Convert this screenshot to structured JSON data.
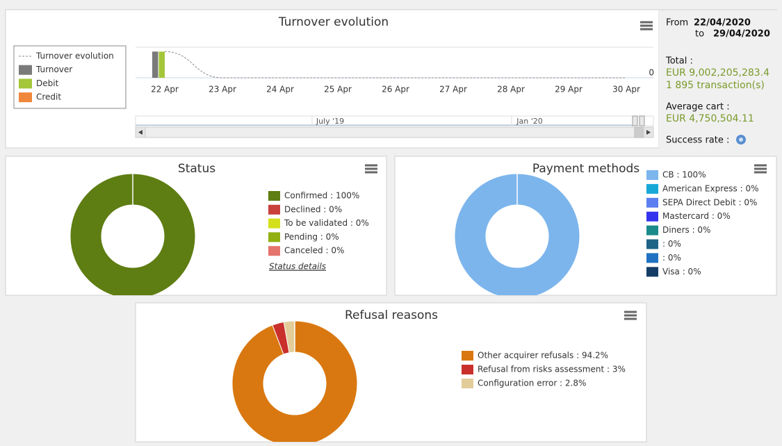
{
  "sidebar": {
    "from_label": "From",
    "from": "22/04/2020",
    "to_label": "to",
    "to": "29/04/2020",
    "total_label": "Total :",
    "total": "EUR 9,002,205,283.4",
    "transactions": "1 895 transaction(s)",
    "average_label": "Average cart :",
    "average": "EUR 4,750,504.11",
    "success_label": "Success rate :"
  },
  "chart_data": [
    {
      "type": "bar",
      "title": "Turnover evolution",
      "categories": [
        "22 Apr",
        "23 Apr",
        "24 Apr",
        "25 Apr",
        "26 Apr",
        "27 Apr",
        "28 Apr",
        "29 Apr",
        "30 Apr"
      ],
      "series": [
        {
          "name": "Turnover evolution",
          "kind": "line",
          "color": "#888888",
          "values": [
            9002205283.4,
            0,
            0,
            0,
            0,
            0,
            0,
            0,
            0
          ]
        },
        {
          "name": "Turnover",
          "kind": "bar",
          "color": "#7a7a7a",
          "values": [
            9002205283.4,
            0,
            0,
            0,
            0,
            0,
            0,
            0,
            0
          ]
        },
        {
          "name": "Debit",
          "kind": "bar",
          "color": "#a4c639",
          "values": [
            9002205283.4,
            0,
            0,
            0,
            0,
            0,
            0,
            0,
            0
          ]
        },
        {
          "name": "Credit",
          "kind": "bar",
          "color": "#f0873a",
          "values": [
            0,
            0,
            0,
            0,
            0,
            0,
            0,
            0,
            0
          ]
        }
      ],
      "ylim": [
        0,
        10500000000
      ],
      "yticks": [
        0
      ],
      "grid": true,
      "navigator_labels": [
        "July '19",
        "Jan '20"
      ]
    },
    {
      "type": "pie",
      "title": "Status",
      "categories": [
        "Confirmed : 100%",
        "Declined : 0%",
        "To be validated : 0%",
        "Pending : 0%",
        "Canceled : 0%"
      ],
      "values": [
        100,
        0,
        0,
        0,
        0
      ],
      "colors": [
        "#5e7d12",
        "#c8413b",
        "#d4e01c",
        "#92b012",
        "#e5746d"
      ],
      "link": "Status details"
    },
    {
      "type": "pie",
      "title": "Payment methods",
      "categories": [
        "CB : 100%",
        "American Express : 0%",
        "SEPA Direct Debit : 0%",
        "Mastercard : 0%",
        "Diners : 0%",
        " : 0%",
        " : 0%",
        "Visa : 0%"
      ],
      "values": [
        100,
        0,
        0,
        0,
        0,
        0,
        0,
        0
      ],
      "colors": [
        "#7cb5ec",
        "#17a8d8",
        "#5b7ff0",
        "#3333ee",
        "#1a8a8a",
        "#1f6487",
        "#1f72c1",
        "#143d66"
      ]
    },
    {
      "type": "pie",
      "title": "Refusal reasons",
      "categories": [
        "Other acquirer refusals : 94.2%",
        "Refusal from risks assessment : 3%",
        "Configuration error : 2.8%"
      ],
      "values": [
        94.2,
        3,
        2.8
      ],
      "colors": [
        "#d97810",
        "#c9302c",
        "#e2cc9a"
      ]
    }
  ]
}
